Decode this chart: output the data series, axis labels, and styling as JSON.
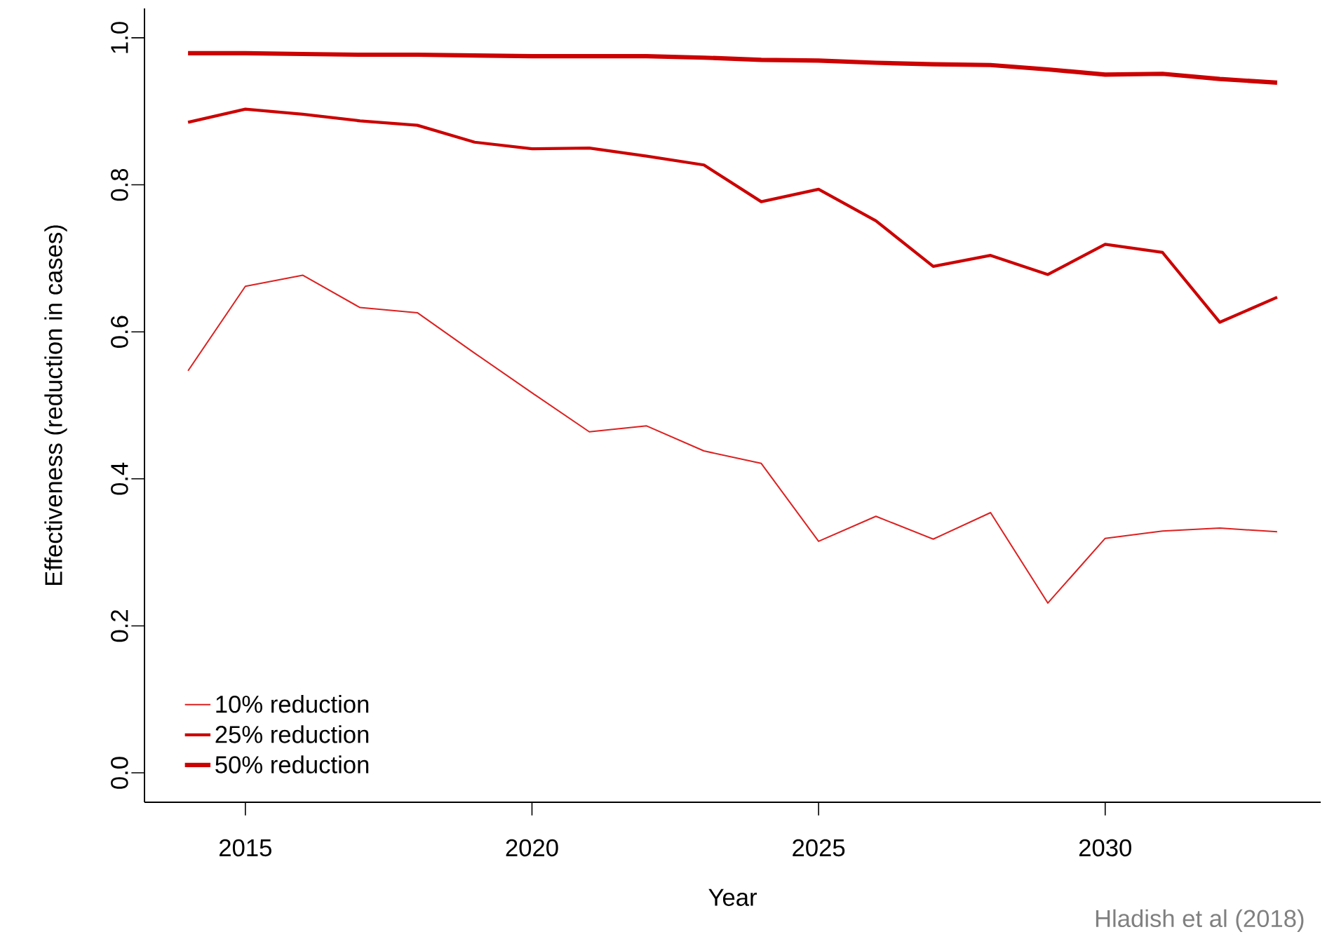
{
  "chart_data": {
    "type": "line",
    "xlabel": "Year",
    "ylabel": "Effectiveness (reduction in cases)",
    "x": [
      2014,
      2015,
      2016,
      2017,
      2018,
      2019,
      2020,
      2021,
      2022,
      2023,
      2024,
      2025,
      2026,
      2027,
      2028,
      2029,
      2030,
      2031,
      2032,
      2033
    ],
    "series": [
      {
        "name": "10% reduction",
        "color": "#dd2020",
        "values": [
          0.547,
          0.662,
          0.677,
          0.633,
          0.626,
          0.571,
          0.517,
          0.464,
          0.472,
          0.438,
          0.421,
          0.315,
          0.349,
          0.318,
          0.354,
          0.231,
          0.319,
          0.329,
          0.333,
          0.328
        ]
      },
      {
        "name": "25% reduction",
        "color": "#cc0000",
        "values": [
          0.885,
          0.903,
          0.896,
          0.887,
          0.881,
          0.858,
          0.849,
          0.85,
          0.839,
          0.827,
          0.777,
          0.794,
          0.751,
          0.689,
          0.704,
          0.678,
          0.719,
          0.708,
          0.613,
          0.647
        ]
      },
      {
        "name": "50% reduction",
        "color": "#cc0000",
        "values": [
          0.979,
          0.979,
          0.978,
          0.977,
          0.977,
          0.976,
          0.975,
          0.975,
          0.975,
          0.973,
          0.97,
          0.969,
          0.966,
          0.964,
          0.963,
          0.957,
          0.95,
          0.951,
          0.944,
          0.939
        ]
      }
    ],
    "xlim": [
      2013.24,
      2033.76
    ],
    "ylim": [
      -0.04,
      1.04
    ],
    "xticks": [
      2015,
      2020,
      2025,
      2030
    ],
    "yticks": [
      {
        "value": 0,
        "label": "0.0"
      },
      0.2,
      0.4,
      0.6,
      0.8,
      {
        "value": 1,
        "label": "1.0"
      }
    ],
    "grid": false,
    "legend": "bottom left",
    "line_style": "solid",
    "marker": "none",
    "annotations": [
      "Hladish et al (2018)"
    ]
  }
}
